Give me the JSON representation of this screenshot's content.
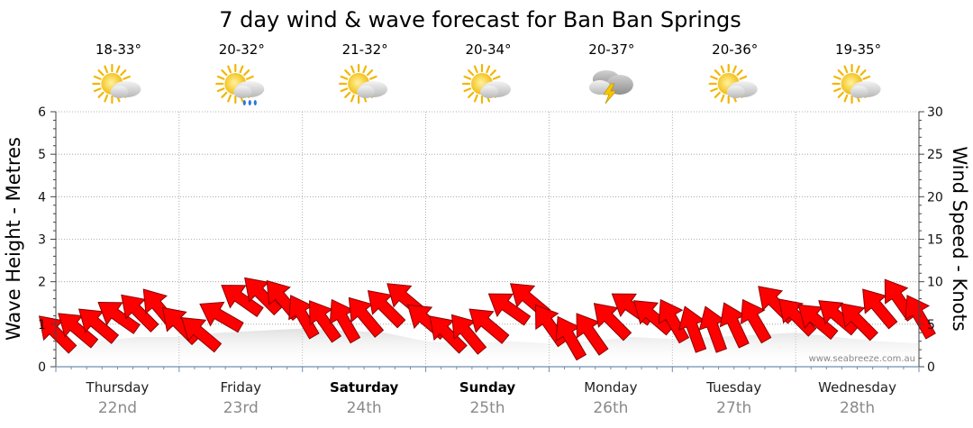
{
  "chart_data": {
    "type": "line",
    "title": "7 day wind & wave forecast for Ban Ban Springs",
    "ylabel": "Wave Height - Metres",
    "y2label": "Wind Speed - Knots",
    "ylim": [
      0,
      6
    ],
    "y2lim": [
      0,
      30
    ],
    "y_ticks": [
      "0",
      "1",
      "2",
      "3",
      "4",
      "5",
      "6"
    ],
    "y2_ticks": [
      "0",
      "5",
      "10",
      "15",
      "20",
      "25",
      "30"
    ],
    "grid": true,
    "days": [
      {
        "name": "Thursday",
        "date": "22nd",
        "bold": false,
        "temp": "18-33°",
        "icon": "partly-cloudy-sun-icon"
      },
      {
        "name": "Friday",
        "date": "23rd",
        "bold": false,
        "temp": "20-32°",
        "icon": "sun-cloud-rain-icon"
      },
      {
        "name": "Saturday",
        "date": "24th",
        "bold": true,
        "temp": "21-32°",
        "icon": "partly-cloudy-sun-icon"
      },
      {
        "name": "Sunday",
        "date": "25th",
        "bold": true,
        "temp": "20-34°",
        "icon": "partly-cloudy-sun-icon"
      },
      {
        "name": "Monday",
        "date": "26th",
        "bold": false,
        "temp": "20-37°",
        "icon": "thunderstorm-icon"
      },
      {
        "name": "Tuesday",
        "date": "27th",
        "bold": false,
        "temp": "20-36°",
        "icon": "partly-cloudy-sun-icon"
      },
      {
        "name": "Wednesday",
        "date": "28th",
        "bold": false,
        "temp": "19-35°",
        "icon": "partly-cloudy-sun-icon"
      }
    ],
    "wind_series": {
      "name": "Wind",
      "color": "#ff0000",
      "x_hours": [
        0,
        4,
        8,
        12,
        16,
        20,
        24,
        28,
        32,
        36,
        40,
        44,
        48,
        52,
        56,
        60,
        64,
        68,
        72,
        76,
        80,
        84,
        88,
        92,
        96,
        100,
        104,
        108,
        112,
        116,
        120,
        124,
        128,
        132,
        136,
        140,
        144,
        148,
        152,
        156,
        160,
        164,
        168
      ],
      "speed_knots": [
        4,
        4.5,
        5,
        6,
        6.5,
        7,
        5,
        4,
        6,
        8,
        8.5,
        8,
        6,
        5.5,
        5.5,
        6,
        7,
        8,
        5.5,
        4,
        4,
        5,
        7,
        8,
        5,
        3.5,
        4,
        5.5,
        7,
        6,
        5.5,
        4.5,
        4.5,
        5,
        5.5,
        7.5,
        6,
        5.5,
        6,
        5.5,
        7,
        8,
        6
      ],
      "direction_deg": [
        45,
        40,
        40,
        35,
        45,
        50,
        45,
        40,
        30,
        35,
        45,
        50,
        60,
        55,
        60,
        50,
        45,
        40,
        40,
        45,
        50,
        40,
        35,
        40,
        55,
        60,
        55,
        45,
        35,
        40,
        60,
        70,
        70,
        65,
        60,
        45,
        45,
        40,
        40,
        45,
        50,
        55,
        60
      ]
    },
    "wave_series": {
      "name": "Wave",
      "color": "#cccccc",
      "x_hours": [
        0,
        8,
        16,
        24,
        32,
        40,
        48,
        56,
        64,
        72,
        80,
        88,
        96,
        104,
        112,
        120,
        128,
        136,
        144,
        152,
        160,
        168
      ],
      "height_m": [
        0.5,
        0.6,
        0.7,
        0.7,
        0.8,
        0.85,
        0.9,
        0.85,
        0.8,
        0.6,
        0.55,
        0.6,
        0.55,
        0.6,
        0.7,
        0.65,
        0.7,
        0.75,
        0.8,
        0.7,
        0.6,
        0.55
      ]
    },
    "watermark": "www.seabreeze.com.au"
  }
}
